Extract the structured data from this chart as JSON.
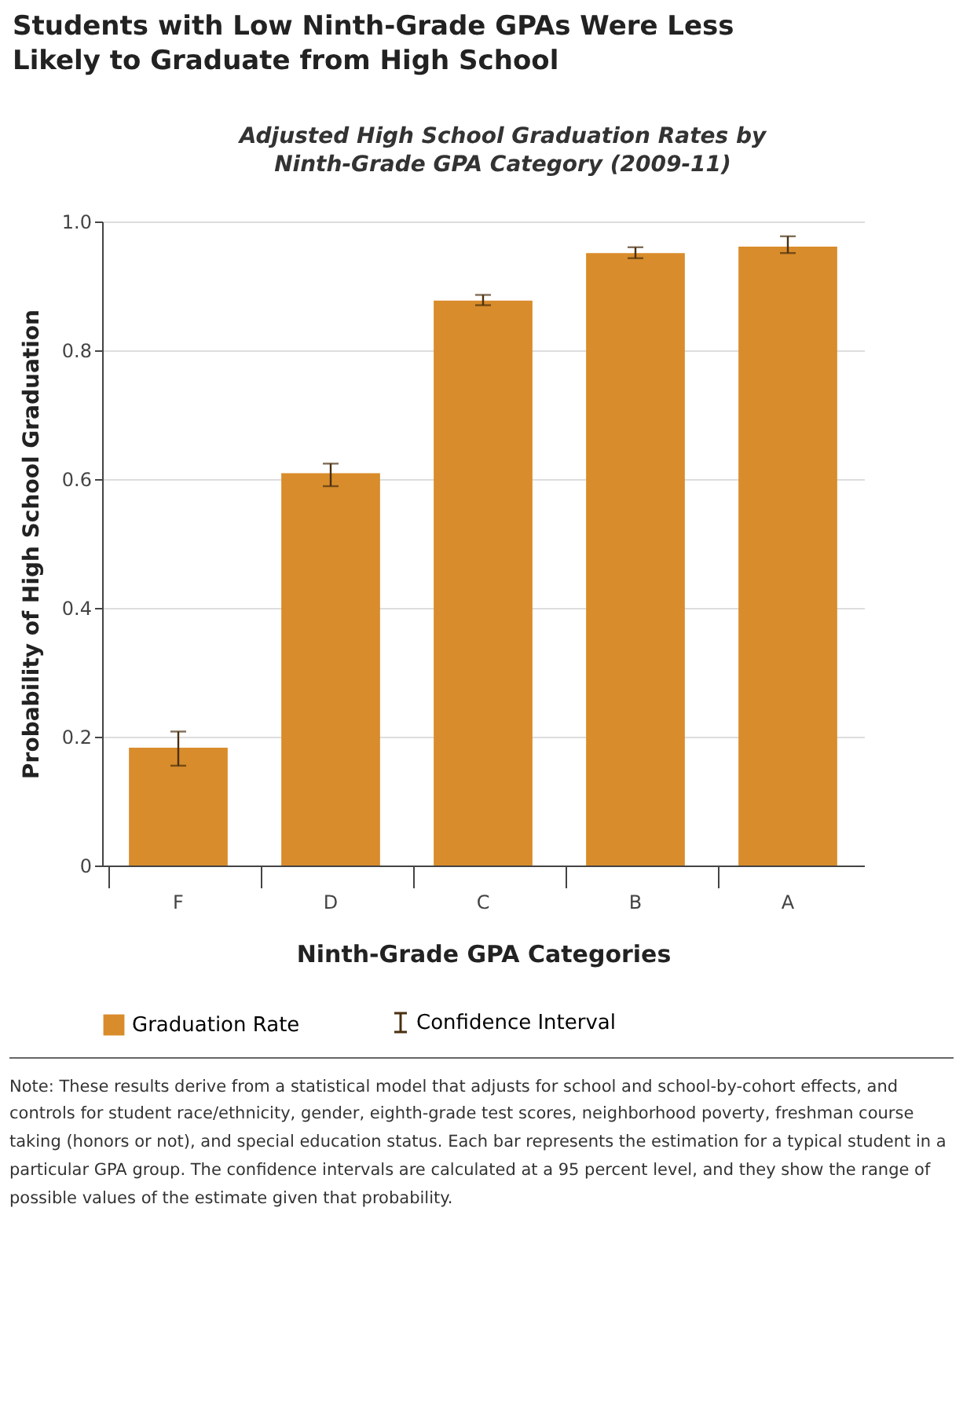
{
  "chart_data": {
    "type": "bar",
    "title": "Students with Low Ninth-Grade GPAs Were Less Likely to Graduate from High School",
    "subtitle": "Adjusted High School Graduation Rates by Ninth-Grade GPA Category (2009-11)",
    "xlabel": "Ninth-Grade GPA Categories",
    "ylabel": "Probability of High School Graduation",
    "categories": [
      "F",
      "D",
      "C",
      "B",
      "A"
    ],
    "series": [
      {
        "name": "Graduation Rate",
        "color": "#d98c2b",
        "values": [
          0.183,
          0.609,
          0.877,
          0.951,
          0.961
        ],
        "errors": [
          [
            0.155,
            0.208
          ],
          [
            0.589,
            0.624
          ],
          [
            0.87,
            0.886
          ],
          [
            0.943,
            0.96
          ],
          [
            0.951,
            0.977
          ]
        ]
      }
    ],
    "ylim": [
      0,
      1.0
    ],
    "yticks": [
      0,
      0.2,
      0.4,
      0.6,
      0.8,
      {
        "value": 1.0,
        "label": "1.0"
      }
    ],
    "grid": "y",
    "legend": "bottom",
    "annotations": [
      "Confidence Interval",
      "Note: These results derive from a statistical model that adjusts for school and school-by-cohort effects, and controls for student race/ethnicity, gender, eighth-grade test scores, neighborhood poverty, freshman course taking (honors or not), and special education status. Each bar represents the estimation for a typical student in a particular GPA group. The confidence intervals are calculated at a 95 percent level, and they show the range of possible values of the estimate given that probability."
    ]
  }
}
